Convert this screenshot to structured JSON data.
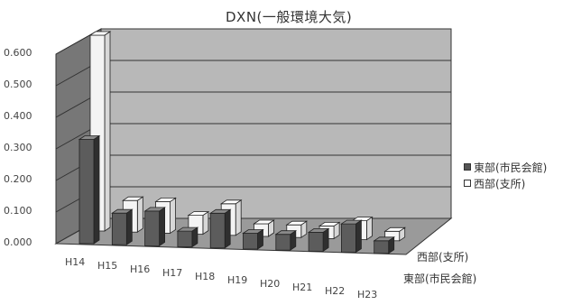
{
  "chart_data": {
    "type": "bar",
    "title": "DXN(一般環境大気)",
    "categories": [
      "H14",
      "H15",
      "H16",
      "H17",
      "H18",
      "H19",
      "H20",
      "H21",
      "H22",
      "H23"
    ],
    "yticks": [
      "0.000",
      "0.100",
      "0.200",
      "0.300",
      "0.400",
      "0.500",
      "0.600"
    ],
    "ylim": [
      0,
      0.6
    ],
    "grid": true,
    "legend_position": "right",
    "series": [
      {
        "name": "東部(市民会館)",
        "color": "#555555",
        "values": [
          0.33,
          0.1,
          0.11,
          0.05,
          0.11,
          0.05,
          0.05,
          0.06,
          0.09,
          0.04
        ]
      },
      {
        "name": "西部(支所)",
        "color": "#ffffff",
        "values": [
          0.62,
          0.1,
          0.1,
          0.06,
          0.1,
          0.04,
          0.04,
          0.04,
          0.06,
          0.03
        ]
      }
    ],
    "depth_labels": [
      "西部(支所)",
      "東部(市民会館)"
    ]
  }
}
